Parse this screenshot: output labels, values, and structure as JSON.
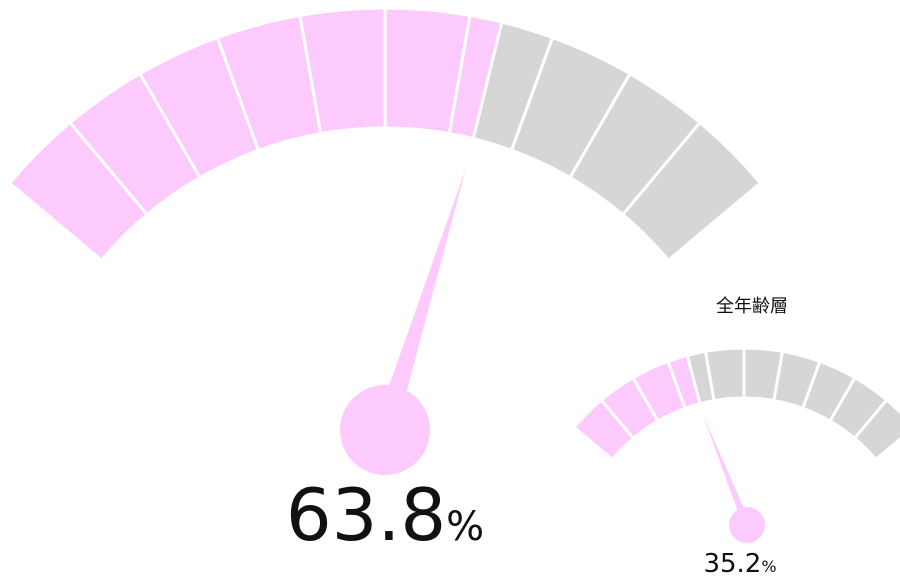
{
  "gauges": [
    {
      "value": 63.8,
      "unit": "%",
      "color": "#fccafc",
      "track_color": "#d6d6d6"
    },
    {
      "title": "全年齢層",
      "value": 35.2,
      "unit": "%",
      "color": "#fccafc",
      "track_color": "#d6d6d6"
    }
  ]
}
